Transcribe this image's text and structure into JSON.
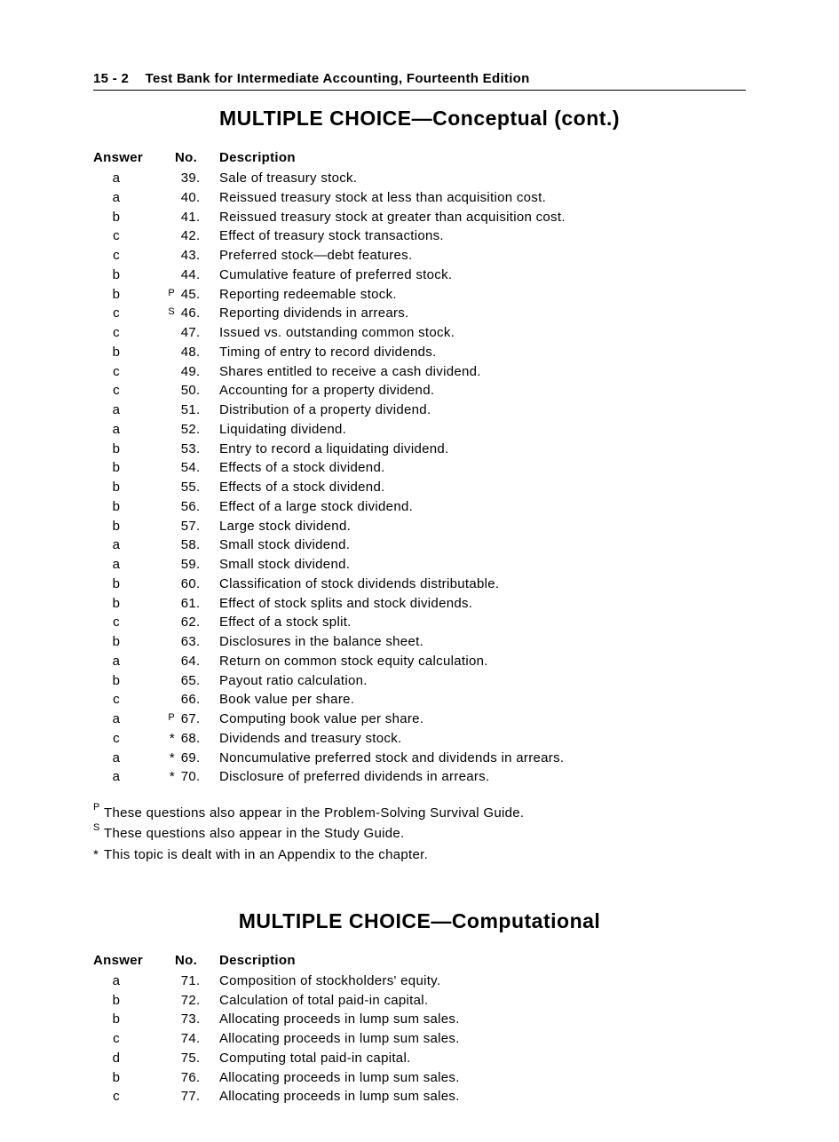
{
  "header": {
    "page_num": "15 - 2",
    "title": "Test Bank for Intermediate Accounting, Fourteenth Edition"
  },
  "section1": {
    "title_bold": "MULTIPLE CHOICE",
    "title_rest": "—Conceptual   (cont.)",
    "columns": {
      "answer": "Answer",
      "no": "No.",
      "desc": "Description"
    },
    "rows": [
      {
        "answer": "a",
        "prefix": "",
        "no": "39",
        "desc": "Sale of treasury stock."
      },
      {
        "answer": "a",
        "prefix": "",
        "no": "40",
        "desc": "Reissued treasury stock at less than acquisition cost."
      },
      {
        "answer": "b",
        "prefix": "",
        "no": "41",
        "desc": "Reissued treasury stock at greater than acquisition cost."
      },
      {
        "answer": "c",
        "prefix": "",
        "no": "42",
        "desc": "Effect of treasury stock transactions."
      },
      {
        "answer": "c",
        "prefix": "",
        "no": "43",
        "desc": "Preferred stock—debt features."
      },
      {
        "answer": "b",
        "prefix": "",
        "no": "44",
        "desc": "Cumulative feature of preferred stock."
      },
      {
        "answer": "b",
        "prefix": "P",
        "no": "45",
        "desc": "Reporting redeemable stock."
      },
      {
        "answer": "c",
        "prefix": "S",
        "no": "46",
        "desc": "Reporting dividends in arrears."
      },
      {
        "answer": "c",
        "prefix": "",
        "no": "47",
        "desc": "Issued vs. outstanding common stock."
      },
      {
        "answer": "b",
        "prefix": "",
        "no": "48",
        "desc": "Timing of entry to record dividends."
      },
      {
        "answer": "c",
        "prefix": "",
        "no": "49",
        "desc": "Shares entitled to receive a cash dividend."
      },
      {
        "answer": "c",
        "prefix": "",
        "no": "50",
        "desc": "Accounting for a property dividend."
      },
      {
        "answer": "a",
        "prefix": "",
        "no": "51",
        "desc": "Distribution of a property dividend."
      },
      {
        "answer": "a",
        "prefix": "",
        "no": "52",
        "desc": "Liquidating dividend."
      },
      {
        "answer": "b",
        "prefix": "",
        "no": "53",
        "desc": "Entry to record a liquidating dividend."
      },
      {
        "answer": "b",
        "prefix": "",
        "no": "54",
        "desc": "Effects of a stock dividend."
      },
      {
        "answer": "b",
        "prefix": "",
        "no": "55",
        "desc": "Effects of a stock dividend."
      },
      {
        "answer": "b",
        "prefix": "",
        "no": "56",
        "desc": "Effect of a large stock dividend."
      },
      {
        "answer": "b",
        "prefix": "",
        "no": "57",
        "desc": "Large stock dividend."
      },
      {
        "answer": "a",
        "prefix": "",
        "no": "58",
        "desc": "Small stock dividend."
      },
      {
        "answer": "a",
        "prefix": "",
        "no": "59",
        "desc": "Small stock dividend."
      },
      {
        "answer": "b",
        "prefix": "",
        "no": "60",
        "desc": "Classification of stock dividends distributable."
      },
      {
        "answer": "b",
        "prefix": "",
        "no": "61",
        "desc": "Effect of stock splits and stock dividends."
      },
      {
        "answer": "c",
        "prefix": "",
        "no": "62",
        "desc": "Effect of a stock split."
      },
      {
        "answer": "b",
        "prefix": "",
        "no": "63",
        "desc": "Disclosures in the balance sheet."
      },
      {
        "answer": "a",
        "prefix": "",
        "no": "64",
        "desc": "Return on common stock equity calculation."
      },
      {
        "answer": "b",
        "prefix": "",
        "no": "65",
        "desc": "Payout ratio calculation."
      },
      {
        "answer": "c",
        "prefix": "",
        "no": "66",
        "desc": "Book value per share."
      },
      {
        "answer": "a",
        "prefix": "P",
        "no": "67",
        "desc": "Computing book value per share."
      },
      {
        "answer": "c",
        "prefix": "*",
        "no": "68",
        "desc": "Dividends and treasury stock."
      },
      {
        "answer": "a",
        "prefix": "*",
        "no": "69",
        "desc": "Noncumulative preferred stock and dividends in arrears."
      },
      {
        "answer": "a",
        "prefix": "*",
        "no": "70",
        "desc": "Disclosure of preferred dividends in arrears."
      }
    ]
  },
  "notes": [
    {
      "sup": "P",
      "text": "These questions also appear in the Problem-Solving Survival Guide."
    },
    {
      "sup": "S",
      "text": "These questions also appear in the Study Guide."
    },
    {
      "sup": "*",
      "text": "This topic is dealt with in an Appendix to the chapter."
    }
  ],
  "section2": {
    "title_bold": "MULTIPLE CHOICE",
    "title_rest": "—Computational",
    "columns": {
      "answer": "Answer",
      "no": "No.",
      "desc": "Description"
    },
    "rows": [
      {
        "answer": "a",
        "prefix": "",
        "no": "71",
        "desc": "Composition of stockholders' equity."
      },
      {
        "answer": "b",
        "prefix": "",
        "no": "72",
        "desc": "Calculation of total paid-in capital."
      },
      {
        "answer": "b",
        "prefix": "",
        "no": "73",
        "desc": "Allocating proceeds in lump sum sales."
      },
      {
        "answer": "c",
        "prefix": "",
        "no": "74",
        "desc": "Allocating proceeds in lump sum sales."
      },
      {
        "answer": "d",
        "prefix": "",
        "no": "75",
        "desc": "Computing total paid-in capital."
      },
      {
        "answer": "b",
        "prefix": "",
        "no": "76",
        "desc": "Allocating proceeds in lump sum sales."
      },
      {
        "answer": "c",
        "prefix": "",
        "no": "77",
        "desc": "Allocating proceeds in lump sum sales."
      }
    ]
  }
}
